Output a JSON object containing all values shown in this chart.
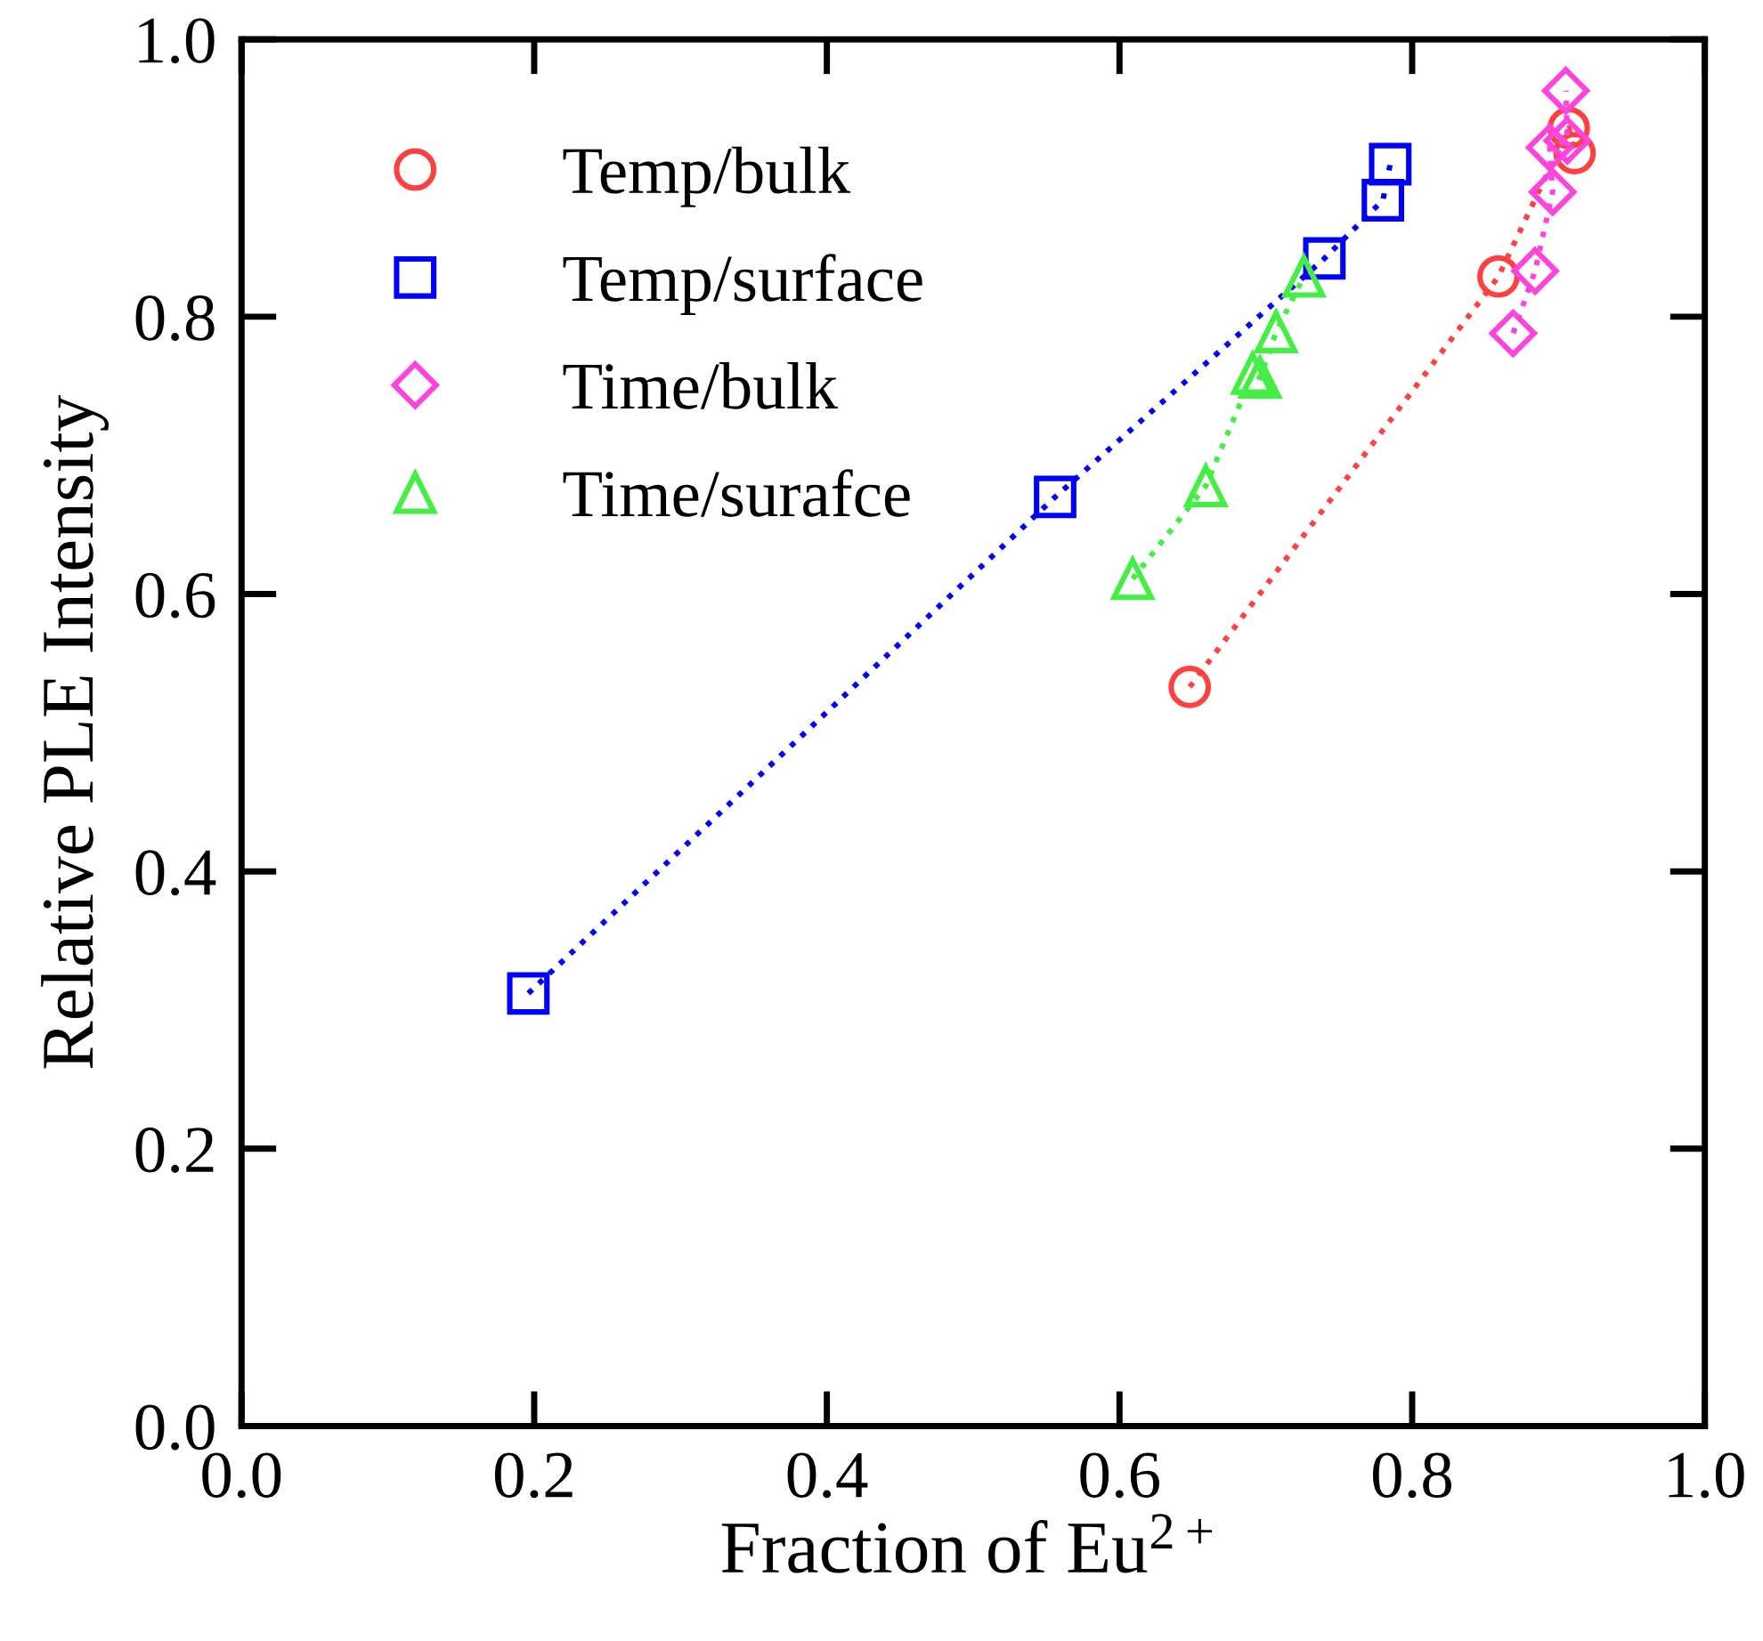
{
  "chart_data": {
    "type": "line",
    "xlabel": "Fraction of Eu$^{2+}$",
    "ylabel": "Relative PLE Intensity",
    "xlim": [
      0,
      1
    ],
    "ylim": [
      0,
      1
    ],
    "xticks": [
      {
        "value": 0,
        "label": "0.0"
      },
      0.2,
      0.4,
      0.6,
      0.8,
      {
        "value": 1,
        "label": "1.0"
      }
    ],
    "yticks": [
      {
        "value": 0,
        "label": "0.0"
      },
      0.2,
      0.4,
      0.6,
      0.8,
      {
        "value": 1,
        "label": "1.0"
      }
    ],
    "grid": false,
    "legend": "top left",
    "line_style": "dotted",
    "series": [
      {
        "name": "Temp/bulk",
        "color": "#ff4040",
        "marker": "circle",
        "x": [
          0.648,
          0.859,
          0.907,
          0.911
        ],
        "values": [
          0.533,
          0.829,
          0.936,
          0.918
        ]
      },
      {
        "name": "Temp/surface",
        "color": "#0000ff",
        "marker": "square",
        "x": [
          0.196,
          0.556,
          0.74,
          0.78,
          0.785
        ],
        "values": [
          0.312,
          0.67,
          0.842,
          0.884,
          0.91
        ]
      },
      {
        "name": "Time/bulk",
        "color": "#ff44dd",
        "marker": "diamond",
        "x": [
          0.869,
          0.884,
          0.896,
          0.894,
          0.906,
          0.905
        ],
        "values": [
          0.788,
          0.833,
          0.89,
          0.922,
          0.927,
          0.963
        ]
      },
      {
        "name": "Time/surafce",
        "color": "#44ee44",
        "marker": "triangle",
        "x": [
          0.609,
          0.659,
          0.691,
          0.696,
          0.707,
          0.726
        ],
        "values": [
          0.611,
          0.678,
          0.759,
          0.756,
          0.789,
          0.829
        ]
      }
    ]
  }
}
